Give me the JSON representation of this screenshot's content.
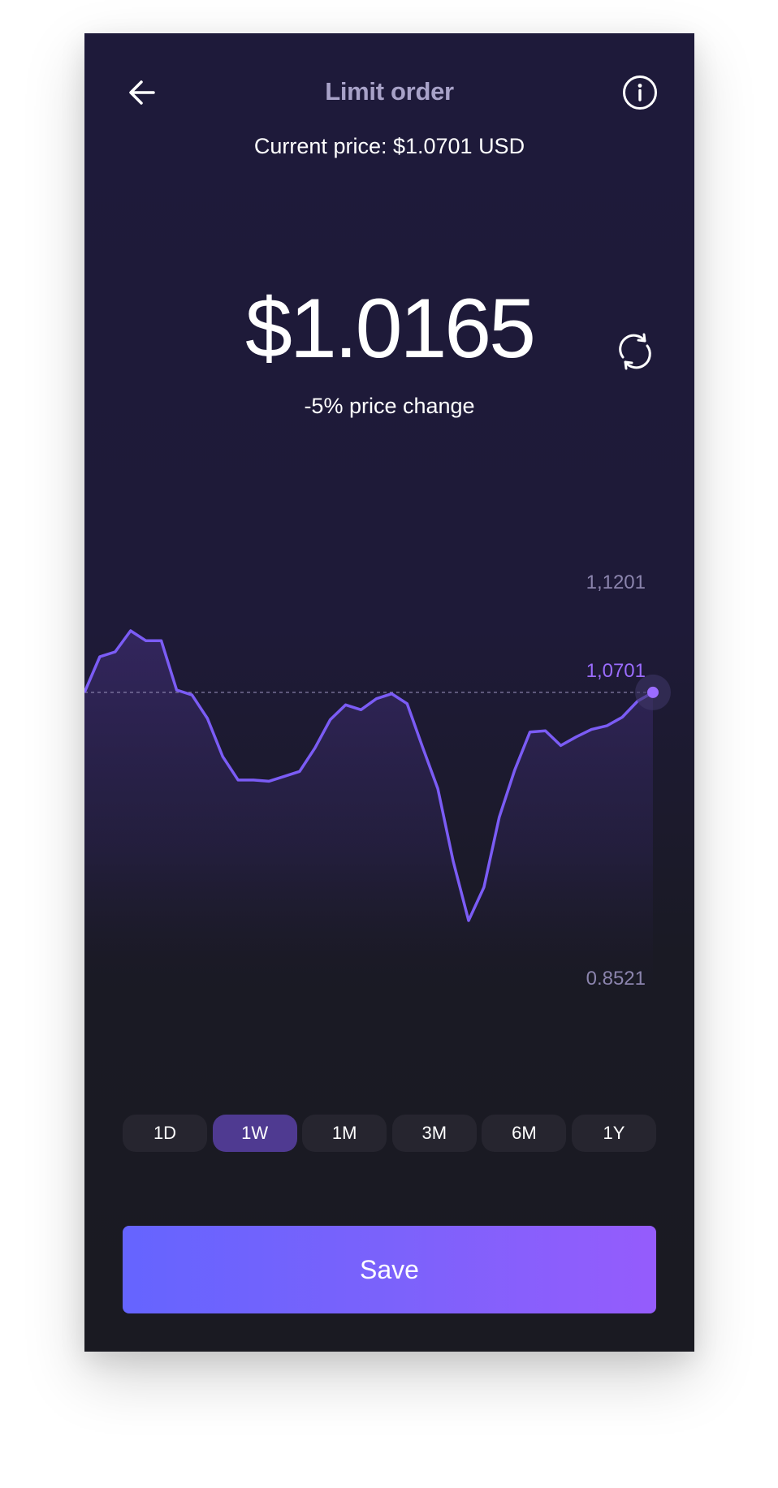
{
  "header": {
    "title": "Limit order",
    "back_icon": "arrow-left-icon",
    "info_icon": "info-icon"
  },
  "price": {
    "current_label": "Current price: $1.0701 USD",
    "limit_value": "$1.0165",
    "change_label": "-5% price change",
    "refresh_icon": "refresh-icon"
  },
  "chart_data": {
    "type": "area",
    "y_max_label": "1,1201",
    "y_current_label": "1,0701",
    "y_min_label": "0.8521",
    "ylim": [
      0.8521,
      1.1201
    ],
    "current_value": 1.0701,
    "values": [
      1.0701,
      1.099,
      1.103,
      1.1201,
      1.112,
      1.112,
      1.072,
      1.068,
      1.049,
      1.018,
      0.999,
      0.999,
      0.998,
      1.002,
      1.006,
      1.025,
      1.048,
      1.06,
      1.056,
      1.065,
      1.069,
      1.061,
      1.026,
      0.992,
      0.933,
      0.885,
      0.912,
      0.969,
      1.007,
      1.038,
      1.039,
      1.027,
      1.034,
      1.04,
      1.043,
      1.05,
      1.063,
      1.0701
    ],
    "line_color": "#7b5cf5",
    "marker_color": "#9b6cff"
  },
  "tabs": [
    {
      "label": "1D",
      "active": false
    },
    {
      "label": "1W",
      "active": true
    },
    {
      "label": "1M",
      "active": false
    },
    {
      "label": "3M",
      "active": false
    },
    {
      "label": "6M",
      "active": false
    },
    {
      "label": "1Y",
      "active": false
    }
  ],
  "save_button": {
    "label": "Save"
  },
  "colors": {
    "accent": "#7b62fb",
    "active_tab": "#4f3a91",
    "title": "#a8a2c8"
  }
}
